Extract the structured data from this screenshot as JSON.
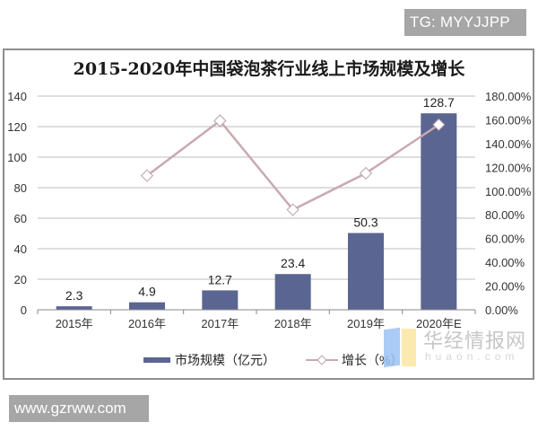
{
  "watermarks": {
    "top_right": "TG: MYYJJPP",
    "bottom_left": "www.gzrww.com",
    "huajing_cn": "华经情报网",
    "huajing_en": "huaon.com"
  },
  "colors": {
    "bar": "#5b6592",
    "line": "#c9a9b0",
    "marker_fill": "#ffffff",
    "gridline": "#bdbdbd",
    "frame": "#8e8e8e",
    "badge_bg": "#a6a6a6"
  },
  "legend": {
    "bar_label": "市场规模（亿元）",
    "line_label": "增长（%）"
  },
  "chart_data": {
    "type": "bar",
    "title": "2015-2020年中国袋泡茶行业线上市场规模及增长",
    "categories": [
      "2015年",
      "2016年",
      "2017年",
      "2018年",
      "2019年",
      "2020年E"
    ],
    "series": [
      {
        "name": "市场规模（亿元）",
        "type": "bar",
        "axis": "left",
        "values": [
          2.3,
          4.9,
          12.7,
          23.4,
          50.3,
          128.7
        ],
        "labels": [
          "2.3",
          "4.9",
          "12.7",
          "23.4",
          "50.3",
          "128.7"
        ]
      },
      {
        "name": "增长（%）",
        "type": "line",
        "axis": "right",
        "marker": "diamond",
        "values": [
          null,
          113.0,
          159.2,
          84.3,
          115.0,
          155.9
        ]
      }
    ],
    "y_left": {
      "ylim": [
        0,
        140
      ],
      "ticks": [
        "0",
        "20",
        "40",
        "60",
        "80",
        "100",
        "120",
        "140"
      ]
    },
    "y_right": {
      "ylim": [
        0,
        180
      ],
      "ticks": [
        "0.00%",
        "20.00%",
        "40.00%",
        "60.00%",
        "80.00%",
        "100.00%",
        "120.00%",
        "140.00%",
        "160.00%",
        "180.00%"
      ]
    },
    "xlabel": "",
    "ylabel": "",
    "grid": true,
    "legend_position": "bottom"
  }
}
